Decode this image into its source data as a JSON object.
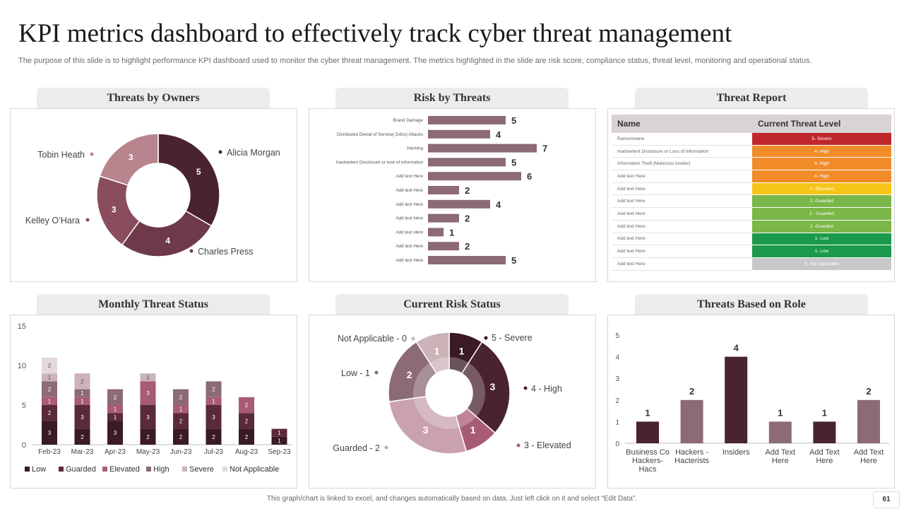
{
  "page": {
    "title": "KPI metrics dashboard to effectively track cyber threat management",
    "subtitle": "The purpose of this slide is to highlight performance KPI dashboard used to monitor the cyber threat management. The metrics highlighted in the slide are risk score, compliance status, threat level, monitoring and operational status.",
    "footer": "This graph/chart is linked to excel, and changes automatically based on data. Just left click on it and select “Edit Data”.",
    "page_number": "61"
  },
  "colors": {
    "dark": "#4a2330",
    "plum": "#7a4656",
    "mauve": "#9b6b79",
    "light_mauve": "#b8858f",
    "rose": "#a85b74",
    "gray_mauve": "#8c6a77",
    "pale": "#cbb3b8",
    "very_pale": "#e5d8db",
    "bar": "#8c6a77"
  },
  "panels": {
    "threats_by_owners": "Threats by Owners",
    "risk_by_threats": "Risk by Threats",
    "threat_report": "Threat Report",
    "monthly_threat_status": "Monthly Threat Status",
    "current_risk_status": "Current  Risk Status",
    "threats_based_on_role": "Threats Based on Role"
  },
  "threat_report": {
    "headers": [
      "Name",
      "Current Threat Level"
    ],
    "rows": [
      {
        "name": "Ransomware",
        "level": "5- Severe",
        "color": "#c0272d"
      },
      {
        "name": "Inadvertent Disclosure or Loss of Information",
        "level": "4- High",
        "color": "#f28c28"
      },
      {
        "name": "Information Theft (Malicious Insider)",
        "level": "4- High",
        "color": "#f28c28"
      },
      {
        "name": "Add text Here",
        "level": "4- High",
        "color": "#f28c28"
      },
      {
        "name": "Add text Here",
        "level": "3 –Elevated",
        "color": "#f5c518"
      },
      {
        "name": "Add text Here",
        "level": "2 -Guarded",
        "color": "#7ab648"
      },
      {
        "name": "Add text Here",
        "level": "2 - Guarded",
        "color": "#7ab648"
      },
      {
        "name": "Add text Here",
        "level": "2 -Guarded",
        "color": "#7ab648"
      },
      {
        "name": "Add text Here",
        "level": "1- Low",
        "color": "#1a9a4a"
      },
      {
        "name": "Add text Here",
        "level": "1- Low",
        "color": "#1a9a4a"
      },
      {
        "name": "Add text Here",
        "level": "0- Not  Applicable",
        "color": "#c8c8c8"
      }
    ]
  },
  "chart_data": [
    {
      "id": "threats_by_owners",
      "type": "pie",
      "title": "Threats by Owners",
      "donut": true,
      "categories": [
        "Alicia Morgan",
        "Charles Press",
        "Kelley O’Hara",
        "Tobin Heath"
      ],
      "values": [
        5,
        4,
        3,
        3
      ],
      "colors": [
        "#4a2330",
        "#6e3a4a",
        "#8a4d5e",
        "#b8858f"
      ]
    },
    {
      "id": "risk_by_threats",
      "type": "bar",
      "orientation": "horizontal",
      "title": "Risk by Threats",
      "categories": [
        "Brand Damage",
        "Distributed Denial of Service( Ddos) Attacks",
        "Hacking",
        "Inadvertent Disclosure or lose of information",
        "Add text Here",
        "Add text Here",
        "Add text Here",
        "Add text Here",
        "Add text Here",
        "Add text Here",
        "Add text Here"
      ],
      "values": [
        5,
        4,
        7,
        5,
        6,
        2,
        4,
        2,
        1,
        2,
        5
      ],
      "xlim": [
        0,
        7
      ]
    },
    {
      "id": "monthly_threat_status",
      "type": "bar",
      "stacked": true,
      "title": "Monthly Threat Status",
      "categories": [
        "Feb-23",
        "Mar-23",
        "Apr-23",
        "May-23",
        "Jun-23",
        "Jul-23",
        "Aug-23",
        "Sep-23"
      ],
      "series": [
        {
          "name": "Low",
          "values": [
            3,
            2,
            3,
            2,
            2,
            2,
            2,
            1
          ],
          "color": "#3a1a24"
        },
        {
          "name": "Guarded",
          "values": [
            2,
            3,
            1,
            3,
            2,
            3,
            2,
            1
          ],
          "color": "#5a2a38"
        },
        {
          "name": "Elevated",
          "values": [
            1,
            1,
            1,
            3,
            1,
            1,
            2,
            0
          ],
          "color": "#a85b74"
        },
        {
          "name": "High",
          "values": [
            2,
            1,
            2,
            0,
            2,
            2,
            0,
            0
          ],
          "color": "#8c6a77"
        },
        {
          "name": "Severe",
          "values": [
            1,
            2,
            0,
            1,
            0,
            0,
            0,
            0
          ],
          "color": "#cbb3b8"
        },
        {
          "name": "Not Applicable",
          "values": [
            2,
            0,
            0,
            0,
            0,
            0,
            0,
            0
          ],
          "color": "#e5d8db"
        }
      ],
      "segment_labels": [
        [
          "3",
          "2",
          "1",
          "2",
          "1",
          "2"
        ],
        [
          "2",
          "3",
          "1",
          "1",
          "2",
          ""
        ],
        [
          "3",
          "1",
          "1",
          "2",
          "",
          ""
        ],
        [
          "2",
          "3",
          "3",
          "",
          "1",
          ""
        ],
        [
          "2",
          "2",
          "1",
          "2",
          "",
          ""
        ],
        [
          "2",
          "3",
          "1",
          "2",
          "",
          ""
        ],
        [
          "2",
          "2",
          "2",
          "",
          "",
          ""
        ],
        [
          "1",
          "1",
          "",
          "",
          "",
          ""
        ]
      ],
      "ylim": [
        0,
        15
      ],
      "yticks": [
        "0",
        "5",
        "10",
        "15"
      ],
      "ytick_values": [
        0,
        5,
        10,
        15
      ]
    },
    {
      "id": "current_risk_status",
      "type": "pie",
      "donut": true,
      "title": "Current Risk Status",
      "categories": [
        "5 - Severe",
        "4 - High",
        "3 - Elevated",
        "Guarded  - 2",
        "Low - 1",
        "Not Applicable - 0"
      ],
      "values": [
        1,
        3,
        1,
        3,
        2,
        1
      ],
      "colors": [
        "#3a1a24",
        "#4a2330",
        "#a85b74",
        "#c9a2ad",
        "#8c6a77",
        "#cbb3b8"
      ]
    },
    {
      "id": "threats_based_on_role",
      "type": "bar",
      "title": "Threats Based on Role",
      "categories": [
        "Business Co Hackers- Hacs",
        "Hackers - Hacterists",
        "Insiders",
        "Add Text Here",
        "Add Text Here",
        "Add Text Here"
      ],
      "category_lines": [
        [
          "Business Co",
          "Hackers-",
          "Hacs"
        ],
        [
          "Hackers -",
          "Hacterists"
        ],
        [
          "Insiders"
        ],
        [
          "Add Text",
          "Here"
        ],
        [
          "Add Text",
          "Here"
        ],
        [
          "Add Text",
          "Here"
        ]
      ],
      "values": [
        1,
        2,
        4,
        1,
        1,
        2
      ],
      "colors": [
        "#4a2330",
        "#8c6a77",
        "#4a2330",
        "#8c6a77",
        "#4a2330",
        "#8c6a77"
      ],
      "ylim": [
        0,
        5
      ],
      "yticks": [
        "0",
        "1",
        "2",
        "3",
        "4",
        "5"
      ],
      "ytick_values": [
        0,
        1,
        2,
        3,
        4,
        5
      ]
    }
  ]
}
